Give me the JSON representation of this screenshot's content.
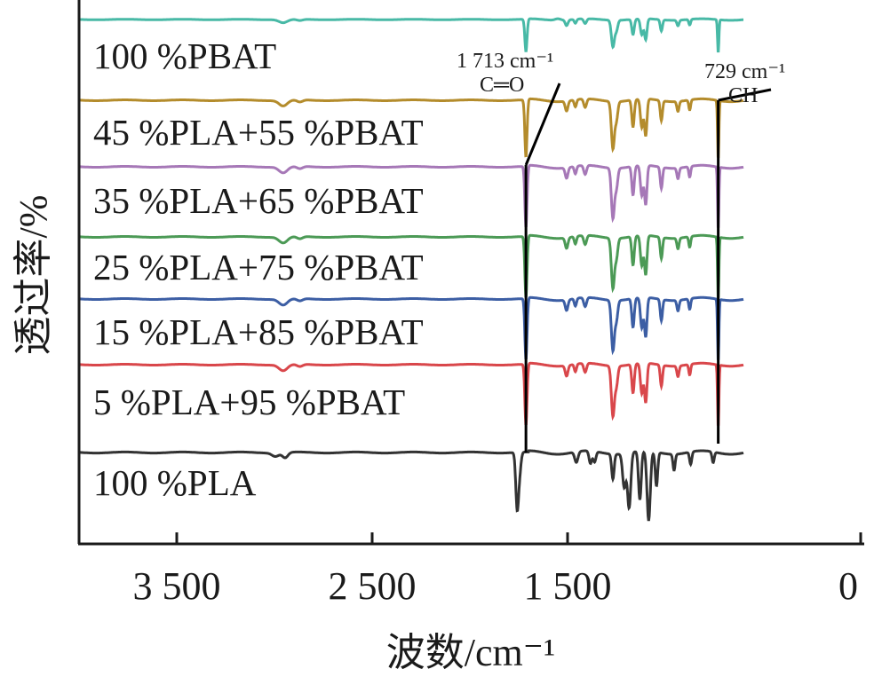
{
  "chart_data": {
    "type": "line",
    "xlabel": "波数/cm⁻¹",
    "ylabel": "透过率/%",
    "xlim": [
      4000,
      0
    ],
    "x_reversed": true,
    "x_ticks": [
      3500,
      2500,
      1500,
      0
    ],
    "x_tick_labels": [
      "3 500",
      "2 500",
      "1 500",
      "0"
    ],
    "y_ticks": [],
    "grid": false,
    "legend": "inline labels beside each spectrum",
    "series": [
      {
        "name": "100 %PBAT",
        "color": "#48b9a6",
        "kind": "pbat"
      },
      {
        "name": "45 %PLA+55 %PBAT",
        "color": "#b48c2c",
        "kind": "blend"
      },
      {
        "name": "35 %PLA+65 %PBAT",
        "color": "#a678b7",
        "kind": "blend"
      },
      {
        "name": "25 %PLA+75 %PBAT",
        "color": "#4c9a56",
        "kind": "blend"
      },
      {
        "name": "15 %PLA+85 %PBAT",
        "color": "#3c5ea4",
        "kind": "blend"
      },
      {
        "name": "5 %PLA+95 %PBAT",
        "color": "#d9474b",
        "kind": "blend"
      },
      {
        "name": "100 %PLA",
        "color": "#333333",
        "kind": "pla"
      }
    ],
    "annotations": [
      {
        "line1": "1 713 cm⁻¹",
        "line2": "C═O",
        "x": 1713
      },
      {
        "line1": "729 cm⁻¹",
        "line2": "CH",
        "x": 729
      }
    ],
    "peaks_cm1": [
      2955,
      1713,
      1750,
      1455,
      1410,
      1267,
      1185,
      1100,
      1085,
      1020,
      935,
      870,
      755,
      729
    ]
  }
}
